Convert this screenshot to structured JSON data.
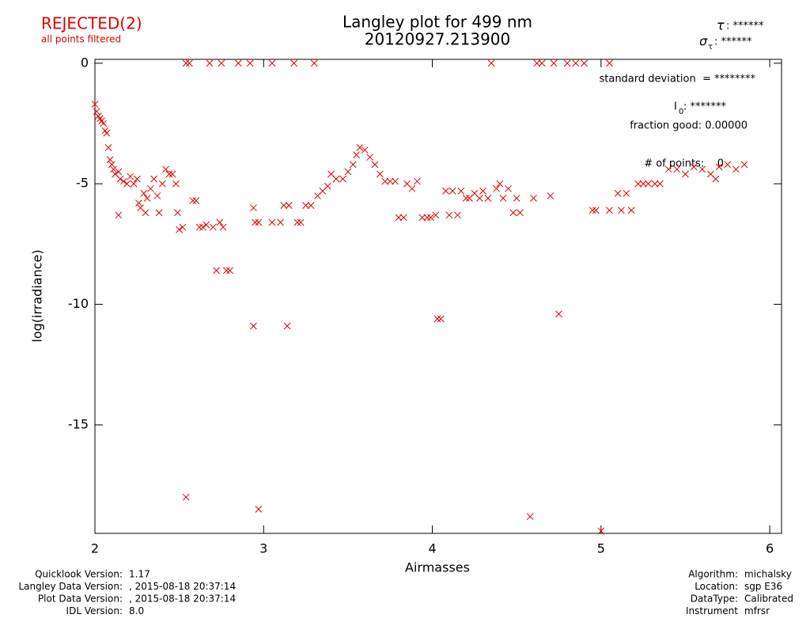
{
  "chart_data": {
    "type": "scatter",
    "title": "Langley plot for 499 nm",
    "subtitle": "20120927.213900",
    "status": "REJECTED(2)",
    "status_note": "all points filtered",
    "tau": {
      "symbol": "τ",
      "value": ": ******"
    },
    "sigma_tau": {
      "symbol": "σ",
      "sub": "τ",
      "value": ": ******"
    },
    "x_label": "Airmasses",
    "y_label": "log(irradiance)",
    "annotations": {
      "std_dev": "standard deviation  = ********",
      "i0": {
        "symbol": "I",
        "sub": "0",
        "value": ": *******"
      },
      "fraction_good": "fraction good: 0.00000",
      "points": "# of points:    0"
    },
    "xlim": [
      2,
      6.07
    ],
    "ylim": [
      -19.5,
      0.16
    ],
    "xticks": [
      2,
      3,
      4,
      5,
      6
    ],
    "yticks": [
      0,
      -5,
      -10,
      -15
    ],
    "color": "#e00000",
    "x": [
      2.0,
      2.01,
      2.02,
      2.03,
      2.04,
      2.05,
      2.06,
      2.07,
      2.08,
      2.09,
      2.1,
      2.11,
      2.12,
      2.14,
      2.15,
      2.14,
      2.17,
      2.19,
      2.21,
      2.23,
      2.25,
      2.26,
      2.27,
      2.29,
      2.31,
      2.3,
      2.33,
      2.35,
      2.37,
      2.38,
      2.4,
      2.42,
      2.44,
      2.46,
      2.48,
      2.49,
      2.5,
      2.52,
      2.54,
      2.56,
      2.58,
      2.6,
      2.62,
      2.64,
      2.66,
      2.68,
      2.7,
      2.72,
      2.74,
      2.76,
      2.78,
      2.8,
      2.54,
      2.75,
      2.85,
      2.92,
      2.94,
      2.95,
      2.97,
      2.94,
      2.97,
      3.05,
      3.05,
      3.1,
      3.12,
      3.15,
      3.14,
      3.18,
      3.2,
      3.22,
      3.25,
      3.28,
      3.3,
      3.32,
      3.35,
      3.38,
      3.4,
      3.43,
      3.47,
      3.5,
      3.53,
      3.55,
      3.57,
      3.6,
      3.63,
      3.66,
      3.69,
      3.72,
      3.75,
      3.78,
      3.8,
      3.83,
      3.85,
      3.88,
      3.91,
      3.94,
      3.97,
      3.99,
      4.02,
      4.03,
      4.05,
      4.08,
      4.1,
      4.12,
      4.15,
      4.17,
      4.2,
      4.22,
      4.25,
      4.28,
      4.3,
      4.33,
      4.35,
      4.38,
      4.4,
      4.42,
      4.45,
      4.48,
      4.5,
      4.52,
      4.58,
      4.6,
      4.62,
      4.65,
      4.7,
      4.72,
      4.75,
      4.8,
      4.85,
      4.9,
      4.95,
      4.97,
      5.0,
      5.05,
      5.05,
      5.1,
      5.12,
      5.15,
      5.18,
      5.22,
      5.25,
      5.28,
      5.32,
      5.35,
      5.4,
      5.45,
      5.5,
      5.55,
      5.6,
      5.65,
      5.68,
      5.7,
      5.75,
      5.8,
      5.85
    ],
    "values": [
      -1.7,
      -2.0,
      -2.2,
      -2.3,
      -2.4,
      -2.5,
      -2.8,
      -2.9,
      -3.5,
      -4.0,
      -4.2,
      -4.4,
      -4.6,
      -4.5,
      -4.8,
      -6.3,
      -4.9,
      -5.0,
      -4.7,
      -5.0,
      -4.8,
      -5.8,
      -6.0,
      -5.4,
      -5.6,
      -6.2,
      -5.2,
      -4.8,
      -5.5,
      -6.2,
      -5.0,
      -4.4,
      -4.6,
      -4.6,
      -5.0,
      -6.2,
      -6.9,
      -6.8,
      0,
      0,
      -5.7,
      -5.7,
      -6.8,
      -6.8,
      -6.7,
      0,
      -6.8,
      -8.6,
      -6.6,
      -6.8,
      -8.6,
      -8.6,
      -18.0,
      0,
      0,
      0,
      -6.0,
      -6.6,
      -6.6,
      -10.9,
      -18.5,
      0,
      -6.6,
      -6.6,
      -5.9,
      -5.9,
      -10.9,
      0,
      -6.6,
      -6.6,
      -5.9,
      -5.9,
      0,
      -5.5,
      -5.3,
      -5.1,
      -4.6,
      -4.8,
      -4.8,
      -4.5,
      -4.2,
      -3.8,
      -3.5,
      -3.6,
      -3.9,
      -4.2,
      -4.6,
      -4.9,
      -4.9,
      -4.9,
      -6.4,
      -6.4,
      -5.0,
      -5.2,
      -4.9,
      -6.4,
      -6.4,
      -6.4,
      -6.3,
      -10.6,
      -10.6,
      -5.3,
      -6.3,
      -5.3,
      -6.3,
      -5.3,
      -5.6,
      -5.6,
      -5.4,
      -5.6,
      -5.3,
      -5.6,
      0,
      -5.2,
      -5.0,
      -5.6,
      -5.2,
      -6.2,
      -5.6,
      -6.2,
      -18.8,
      -5.6,
      0,
      0,
      -5.5,
      0,
      -10.4,
      0,
      0,
      0,
      -6.1,
      -6.1,
      -19.4,
      -6.1,
      0,
      -5.4,
      -6.1,
      -5.4,
      -6.1,
      -5.0,
      -5.0,
      -5.0,
      -5.0,
      -5.0,
      -4.4,
      -4.4,
      -4.6,
      -4.3,
      -4.4,
      -4.6,
      -4.8,
      -4.3,
      -4.2,
      -4.4,
      -4.2
    ]
  },
  "footer": {
    "left": [
      [
        "Quicklook Version:",
        "1.17"
      ],
      [
        "Langley Data Version:",
        ", 2015-08-18 20:37:14"
      ],
      [
        "Plot Data Version:",
        ", 2015-08-18 20:37:14"
      ],
      [
        "IDL Version:",
        "8.0"
      ]
    ],
    "right": [
      [
        "Algorithm:",
        "michalsky"
      ],
      [
        "Location:",
        "sgp E36"
      ],
      [
        "DataType:",
        "Calibrated"
      ],
      [
        "Instrument",
        "mfrsr"
      ]
    ]
  }
}
